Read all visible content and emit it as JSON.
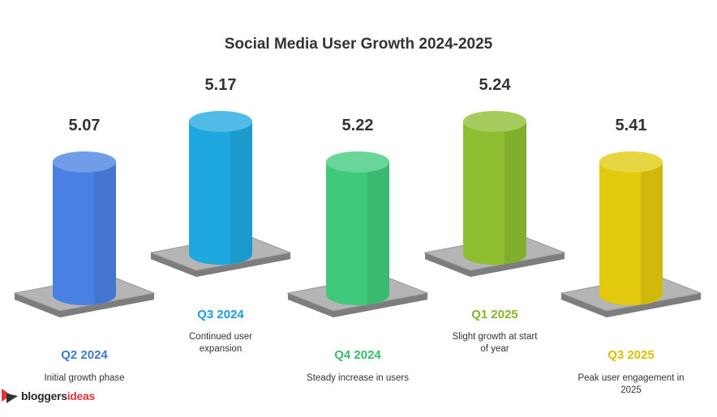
{
  "title": "Social Media User Growth 2024-2025",
  "items": [
    {
      "value": 5.07,
      "label": "Q2 2024",
      "description": "Initial growth phase",
      "color": "#4a80e2",
      "label_color": "#3b78dc"
    },
    {
      "value": 5.17,
      "label": "Q3 2024",
      "description": "Continued user expansion",
      "color": "#1fa8df",
      "label_color": "#1a9fd6"
    },
    {
      "value": 5.22,
      "label": "Q4 2024",
      "description": "Steady increase in users",
      "color": "#3fca7b",
      "label_color": "#35bd6b"
    },
    {
      "value": 5.24,
      "label": "Q1 2025",
      "description": "Slight growth at start of year",
      "color": "#8dbe31",
      "label_color": "#86b52a"
    },
    {
      "value": 5.41,
      "label": "Q3 2025",
      "description": "Peak user engagement in 2025",
      "color": "#e2c90e",
      "label_color": "#dcc000"
    }
  ],
  "brand": {
    "part1": "bloggers",
    "part2": "ideas"
  }
}
